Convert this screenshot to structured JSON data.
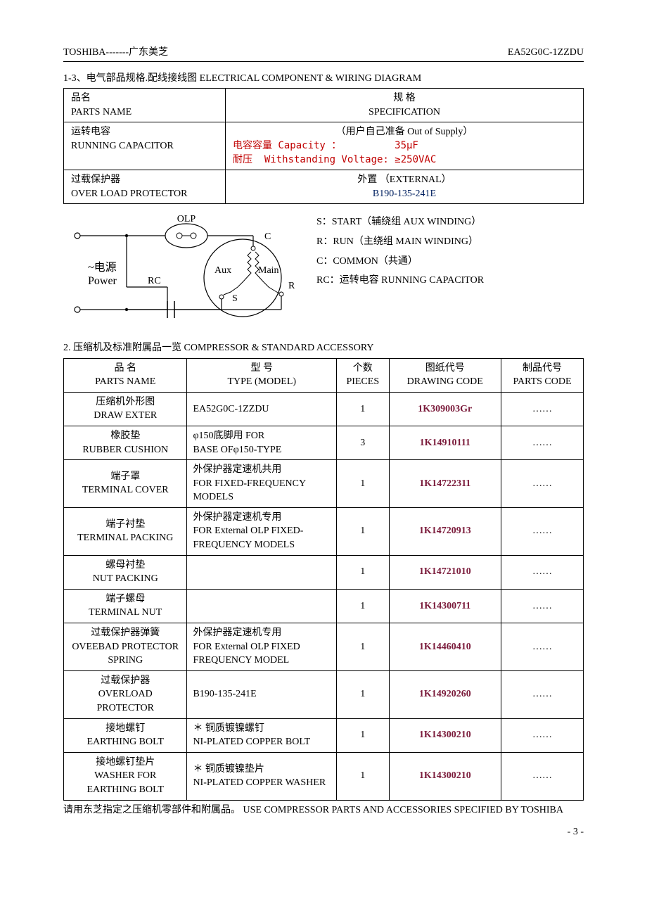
{
  "header": {
    "left": "TOSHIBA-------广东美芝",
    "right": "EA52G0C-1ZZDU"
  },
  "section1": {
    "title": "1-3、电气部品规格.配线接线图  ELECTRICAL COMPONENT & WIRING DIAGRAM",
    "col1_cn": "品名",
    "col1_en": "PARTS NAME",
    "col2_cn": "规    格",
    "col2_en": "SPECIFICATION",
    "rows": [
      {
        "name_cn": "运转电容",
        "name_en": "RUNNING CAPACITOR",
        "spec_top": "（用户自己准备 Out of Supply）",
        "spec_l1": "电容容量 Capacity ：         35μF",
        "spec_l2": "耐压  Withstanding Voltage: ≥250VAC"
      },
      {
        "name_cn": "过载保护器",
        "name_en": "OVER LOAD PROTECTOR",
        "spec_top": "外置  （EXTERNAL）",
        "spec_l1": "B190-135-241E"
      }
    ]
  },
  "wiring": {
    "labels": {
      "olp": "OLP",
      "c": "C",
      "r": "R",
      "s": "S",
      "aux": "Aux",
      "main": "Main",
      "rc": "RC",
      "power_cn": "~电源",
      "power_en": "Power"
    },
    "legend": {
      "s": "S：START（辅绕组    AUX WINDING）",
      "r": "R：RUN（主绕组      MAIN WINDING）",
      "c": "C：COMMON（共通）",
      "rc": "RC：运转电容    RUNNING CAPACITOR"
    }
  },
  "section2": {
    "title": "2.    压缩机及标准附属品一览  COMPRESSOR & STANDARD ACCESSORY",
    "headers": {
      "pname_cn": "品    名",
      "pname_en": "PARTS NAME",
      "type_cn": "型          号",
      "type_en": "TYPE (MODEL)",
      "pcs_cn": "个数",
      "pcs_en": "PIECES",
      "draw_cn": "图纸代号",
      "draw_en": "DRAWING   CODE",
      "pcode_cn": "制品代号",
      "pcode_en": "PARTS CODE"
    },
    "rows": [
      {
        "name_cn": "压缩机外形图",
        "name_en": "DRAW EXTER",
        "type": "EA52G0C-1ZZDU",
        "pcs": "1",
        "draw": "1K309003Gr",
        "pcode": "……"
      },
      {
        "name_cn": "橡胶垫",
        "name_en": "RUBBER CUSHION",
        "type": "φ150底脚用 FOR\nBASE OFφ150-TYPE",
        "pcs": "3",
        "draw": "1K14910111",
        "pcode": "……"
      },
      {
        "name_cn": "端子罩",
        "name_en": "TERMINAL COVER",
        "type": "外保护器定速机共用\nFOR FIXED-FREQUENCY MODELS",
        "pcs": "1",
        "draw": "1K14722311",
        "pcode": "……"
      },
      {
        "name_cn": "端子衬垫",
        "name_en": "TERMINAL PACKING",
        "type": "外保护器定速机专用\nFOR External OLP FIXED-FREQUENCY MODELS",
        "pcs": "1",
        "draw": "1K14720913",
        "pcode": "……"
      },
      {
        "name_cn": "螺母衬垫",
        "name_en": "NUT PACKING",
        "type": "",
        "pcs": "1",
        "draw": "1K14721010",
        "pcode": "……"
      },
      {
        "name_cn": "端子螺母",
        "name_en": "TERMINAL   NUT",
        "type": "",
        "pcs": "1",
        "draw": "1K14300711",
        "pcode": "……"
      },
      {
        "name_cn": "过载保护器弹簧",
        "name_en": "OVEEBAD PROTECTOR SPRING",
        "type": "外保护器定速机专用\nFOR External OLP FIXED FREQUENCY MODEL",
        "pcs": "1",
        "draw": "1K14460410",
        "pcode": "……"
      },
      {
        "name_cn": "过载保护器",
        "name_en": "OVERLOAD PROTECTOR",
        "type": "B190-135-241E",
        "pcs": "1",
        "draw": "1K14920260",
        "pcode": "……"
      },
      {
        "name_cn": "接地螺钉",
        "name_en": "EARTHING BOLT",
        "type": "＊ 铜质镀镍螺钉\nNI-PLATED COPPER BOLT",
        "pcs": "1",
        "draw": "1K14300210",
        "pcode": "……"
      },
      {
        "name_cn": "接地螺钉垫片",
        "name_en": "WASHER  FOR EARTHING BOLT",
        "type": "＊ 铜质镀镍垫片\nNI-PLATED COPPER WASHER",
        "pcs": "1",
        "draw": "1K14300210",
        "pcode": "……"
      }
    ],
    "note": "请用东芝指定之压缩机零部件和附属品。   USE COMPRESSOR PARTS AND ACCESSORIES SPECIFIED BY TOSHIBA"
  },
  "page_number": "- 3 -"
}
